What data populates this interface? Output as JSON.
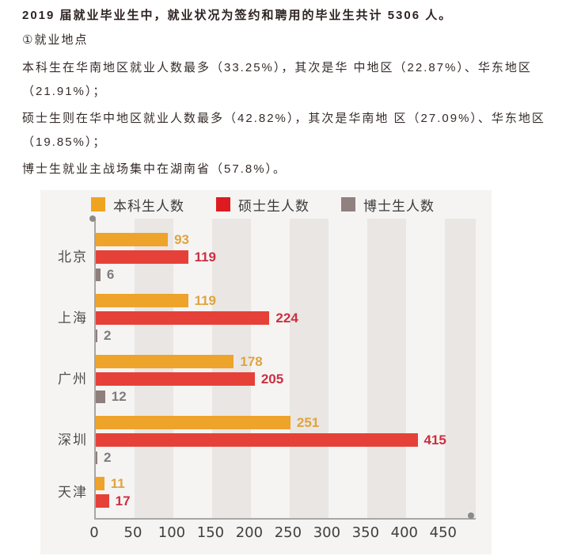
{
  "doc": {
    "title": "2019 届就业毕业生中，就业状况为签约和聘用的毕业生共计 5306 人。",
    "section_label": "①就业地点",
    "paragraphs": [
      "本科生在华南地区就业人数最多（33.25%），其次是华 中地区（22.87%）、华东地区\n（21.91%）；",
      "硕士生则在华中地区就业人数最多（42.82%），其次是华南地 区（27.09%）、华东地区\n（19.85%）；",
      "博士生就业主战场集中在湖南省（57.8%）。"
    ]
  },
  "chart_data": {
    "type": "bar",
    "orientation": "horizontal",
    "title": "",
    "xlabel": "",
    "ylabel": "",
    "categories": [
      "北京",
      "上海",
      "广州",
      "深圳",
      "天津"
    ],
    "series": [
      {
        "name": "本科生人数",
        "color": "#eea32b",
        "swatch_color": "#efa41f",
        "label_color": "#dfa43f",
        "values": [
          93,
          119,
          178,
          251,
          11
        ]
      },
      {
        "name": "硕士生人数",
        "color": "#e64139",
        "swatch_color": "#dd1b21",
        "label_color": "#cc2f41",
        "values": [
          119,
          224,
          205,
          415,
          17
        ]
      },
      {
        "name": "博士生人数",
        "color": "#8e7f7c",
        "swatch_color": "#90807e",
        "label_color": "#7d7d7d",
        "values": [
          6,
          2,
          12,
          2,
          null
        ]
      }
    ],
    "x_ticks": [
      0,
      50,
      100,
      150,
      200,
      250,
      300,
      350,
      400,
      450
    ],
    "xlim": [
      0,
      490
    ],
    "legend_position": "top",
    "grid": "vertical-stripes",
    "background_color": "#f5f4f2",
    "stripe_color": "#e9e6e3",
    "axis_color": "#a9a6a3"
  }
}
